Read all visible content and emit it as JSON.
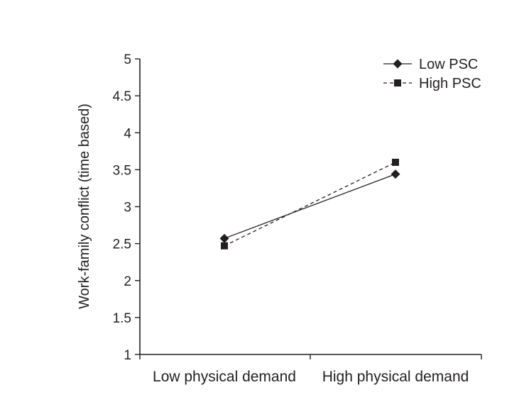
{
  "chart_data": {
    "type": "line",
    "title": "",
    "xlabel": "",
    "ylabel": "Work-family conflict (time based)",
    "categories": [
      "Low physical demand",
      "High physical demand"
    ],
    "ylim": [
      1,
      5
    ],
    "yticks": [
      "1",
      "1.5",
      "2",
      "2.5",
      "3",
      "3.5",
      "4",
      "4.5",
      "5"
    ],
    "ytick_values": [
      1,
      1.5,
      2,
      2.5,
      3,
      3.5,
      4,
      4.5,
      5
    ],
    "grid": false,
    "legend_position": "top-right",
    "series": [
      {
        "name": "Low PSC",
        "values": [
          2.57,
          3.44
        ],
        "marker": "diamond",
        "line": "solid"
      },
      {
        "name": "High PSC",
        "values": [
          2.47,
          3.6
        ],
        "marker": "square",
        "line": "dashed"
      }
    ]
  }
}
